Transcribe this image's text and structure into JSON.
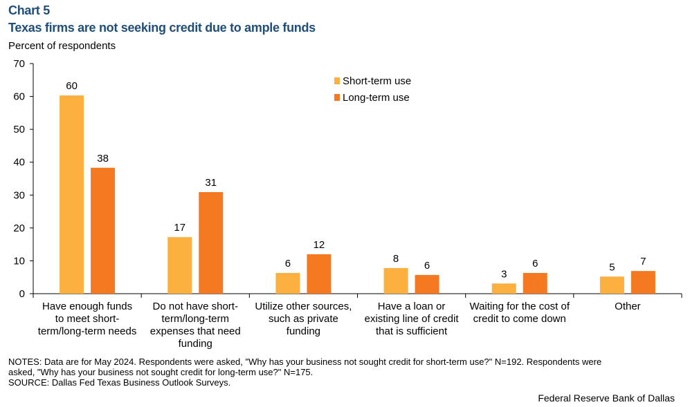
{
  "header": {
    "chart_label": "Chart 5",
    "title": "Texas firms are not seeking credit due to ample funds",
    "unit_label": "Percent of respondents"
  },
  "chart_data": {
    "type": "bar",
    "categories": [
      [
        "Have enough funds",
        "to meet short-",
        "term/long-term needs"
      ],
      [
        "Do not have short-",
        "term/long-term",
        "expenses that need",
        "funding"
      ],
      [
        "Utilize other sources,",
        "such as private",
        "funding"
      ],
      [
        "Have a loan or",
        "existing line of credit",
        "that is sufficient"
      ],
      [
        "Waiting for the cost of",
        "credit to come down"
      ],
      [
        "Other"
      ]
    ],
    "series": [
      {
        "name": "Short-term use",
        "color": "#fbb040",
        "values": [
          60,
          17,
          6,
          8,
          3,
          5
        ]
      },
      {
        "name": "Long-term use",
        "color": "#f47920",
        "values": [
          38,
          31,
          12,
          6,
          6,
          7
        ]
      }
    ],
    "actual_values": {
      "Short-term use": [
        60.3,
        17.2,
        6.3,
        7.8,
        3.1,
        5.2
      ],
      "Long-term use": [
        38.3,
        30.9,
        12.0,
        5.7,
        6.3,
        6.9
      ]
    },
    "ylim": [
      0,
      70
    ],
    "yticks": [
      0,
      10,
      20,
      30,
      40,
      50,
      60,
      70
    ],
    "xlabel": "",
    "ylabel": "Percent of respondents",
    "legend_position": "top-center",
    "grid": false
  },
  "footer": {
    "notes_line1": "NOTES: Data are for May 2024. Respondents were asked, \"Why has your business not sought credit for short-term use?\" N=192. Respondents were",
    "notes_line2": "asked, \"Why has your business not sought credit for long-term use?\" N=175.",
    "source": "SOURCE: Dallas Fed Texas Business Outlook Surveys.",
    "credit": "Federal Reserve Bank of Dallas"
  }
}
